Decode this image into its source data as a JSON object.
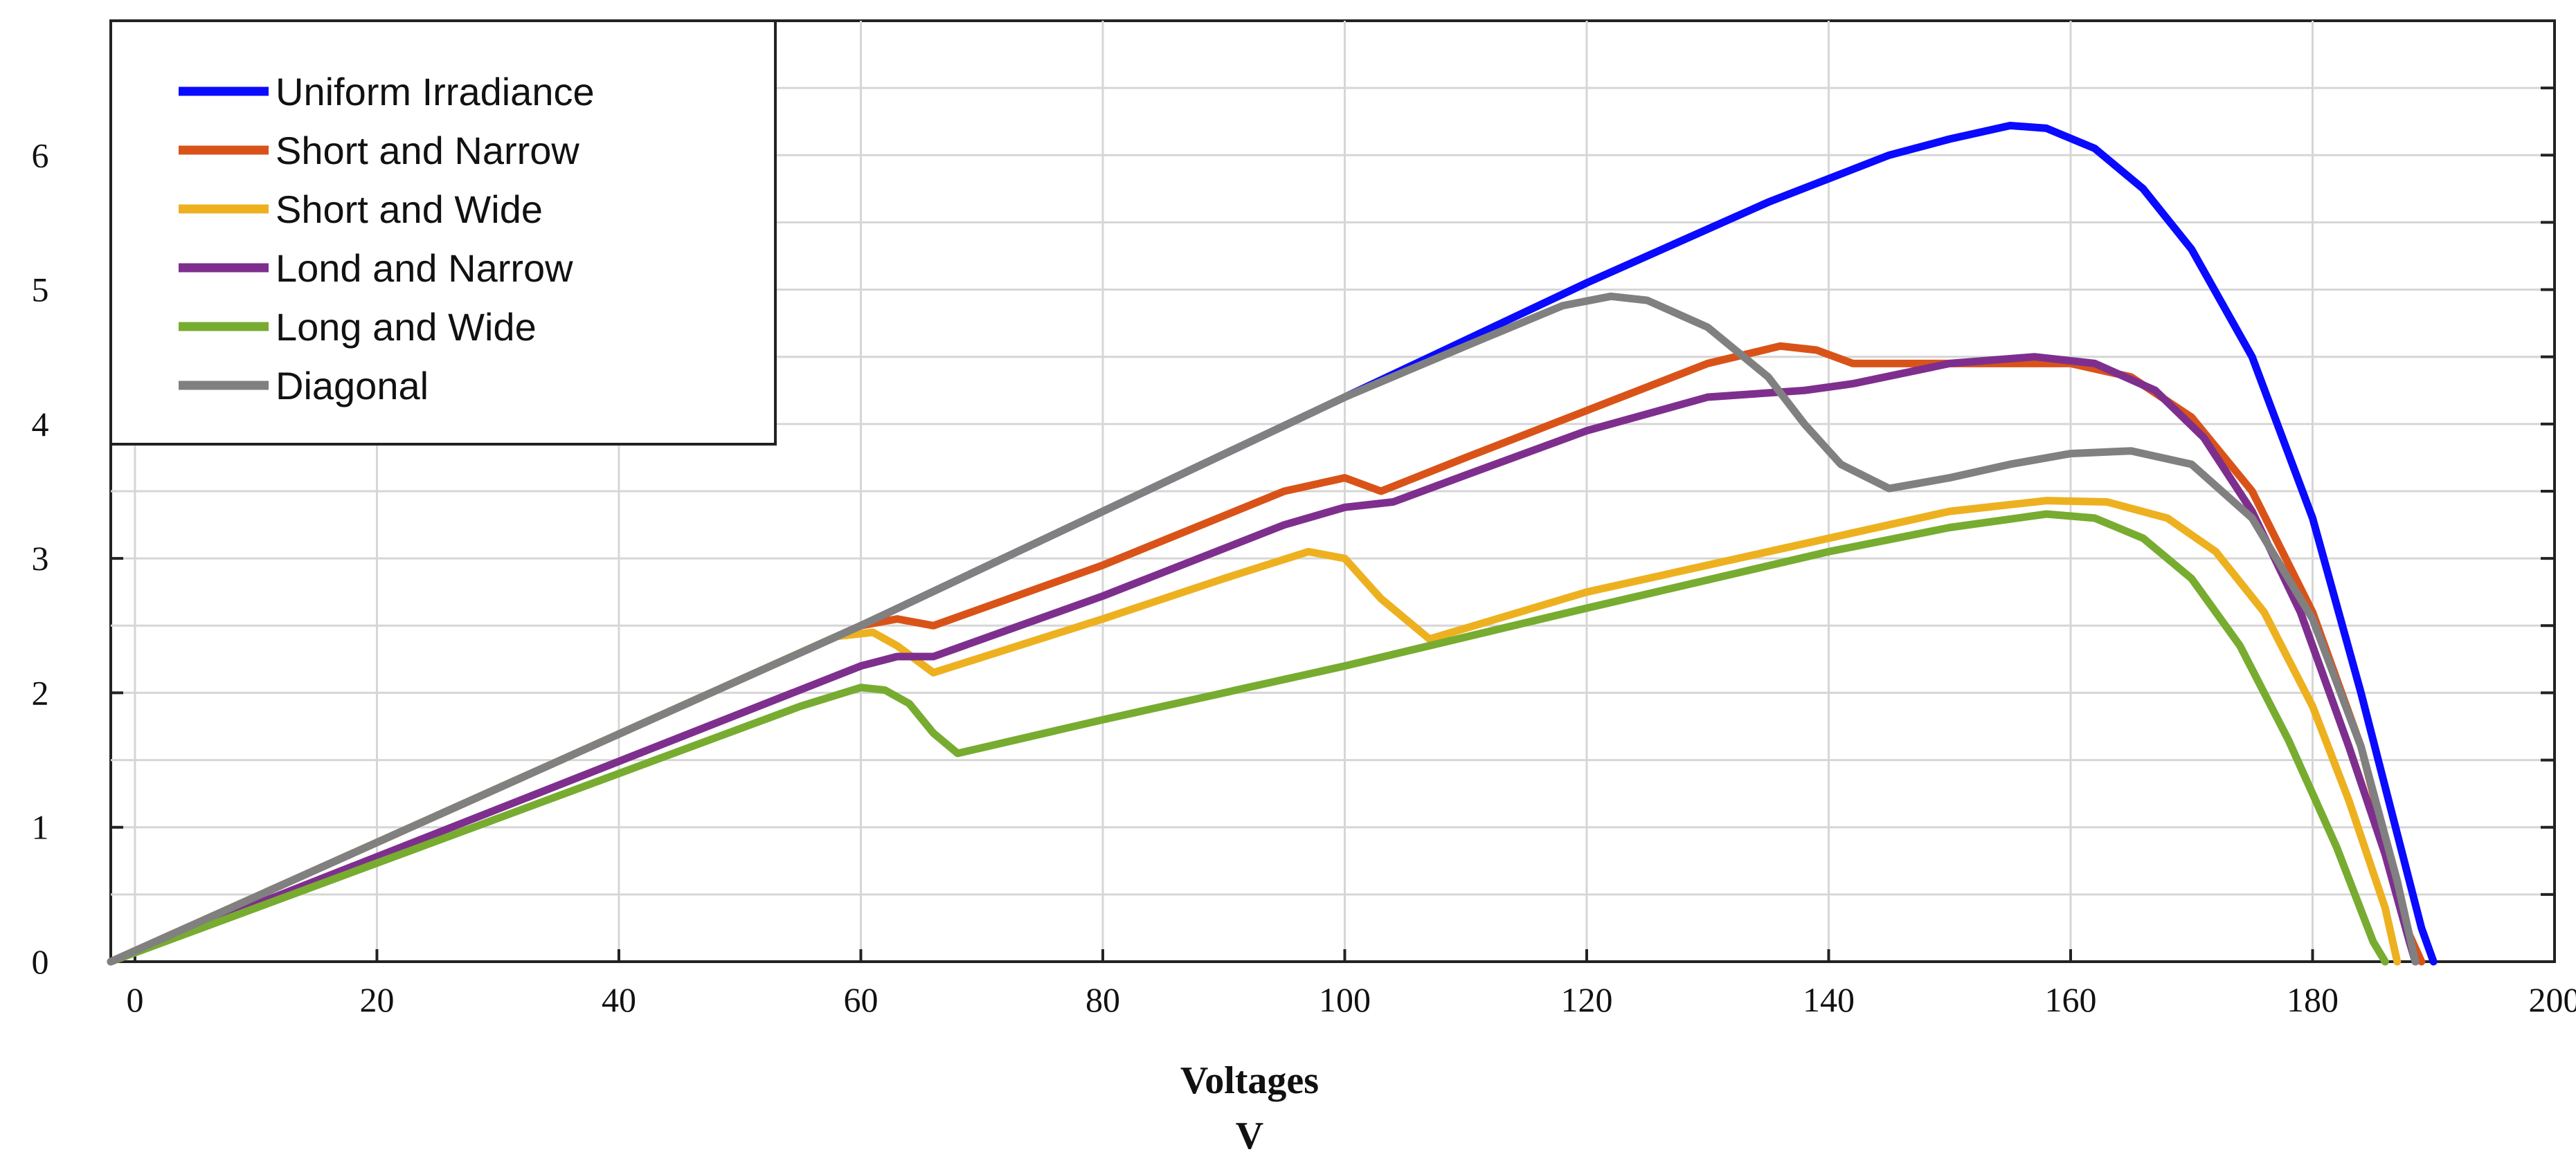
{
  "chart_data": {
    "type": "line",
    "title": "",
    "xlabel": "Voltages",
    "xunit": "V",
    "ylabel": "",
    "xlim": [
      -2,
      200
    ],
    "ylim": [
      0,
      7
    ],
    "grid": true,
    "legend_position": "top-left",
    "x_ticks": [
      0,
      20,
      40,
      60,
      80,
      100,
      120,
      140,
      160,
      180,
      200
    ],
    "y_tick_labels": [
      {
        "value": 0,
        "label": "0"
      },
      {
        "value": 1,
        "label": "1"
      },
      {
        "value": 2,
        "label": "2"
      },
      {
        "value": 3,
        "label": "3"
      },
      {
        "value": 4,
        "label": "4"
      },
      {
        "value": 5,
        "label": "5"
      },
      {
        "value": 6,
        "label": "6"
      }
    ],
    "series": [
      {
        "name": "Uniform Irradiance",
        "color": "#0a0aff",
        "points": [
          [
            -2,
            0
          ],
          [
            60,
            2.5
          ],
          [
            100,
            4.2
          ],
          [
            120,
            5.05
          ],
          [
            135,
            5.65
          ],
          [
            145,
            6.0
          ],
          [
            150,
            6.12
          ],
          [
            155,
            6.22
          ],
          [
            158,
            6.2
          ],
          [
            162,
            6.05
          ],
          [
            166,
            5.75
          ],
          [
            170,
            5.3
          ],
          [
            175,
            4.5
          ],
          [
            180,
            3.3
          ],
          [
            184,
            2.0
          ],
          [
            187,
            0.95
          ],
          [
            189,
            0.25
          ],
          [
            190,
            0
          ]
        ]
      },
      {
        "name": "Short and Narrow",
        "color": "#d95319",
        "points": [
          [
            -2,
            0
          ],
          [
            60,
            2.5
          ],
          [
            63,
            2.55
          ],
          [
            66,
            2.5
          ],
          [
            80,
            2.95
          ],
          [
            95,
            3.5
          ],
          [
            100,
            3.6
          ],
          [
            103,
            3.5
          ],
          [
            110,
            3.75
          ],
          [
            120,
            4.1
          ],
          [
            130,
            4.45
          ],
          [
            136,
            4.58
          ],
          [
            139,
            4.55
          ],
          [
            142,
            4.45
          ],
          [
            160,
            4.45
          ],
          [
            165,
            4.35
          ],
          [
            170,
            4.05
          ],
          [
            175,
            3.5
          ],
          [
            180,
            2.6
          ],
          [
            184,
            1.6
          ],
          [
            186,
            0.9
          ],
          [
            188,
            0.2
          ],
          [
            189,
            0
          ]
        ]
      },
      {
        "name": "Short and Wide",
        "color": "#edb120",
        "points": [
          [
            -2,
            0
          ],
          [
            58,
            2.42
          ],
          [
            61,
            2.45
          ],
          [
            63,
            2.35
          ],
          [
            66,
            2.15
          ],
          [
            80,
            2.55
          ],
          [
            90,
            2.85
          ],
          [
            97,
            3.05
          ],
          [
            100,
            3.0
          ],
          [
            103,
            2.7
          ],
          [
            107,
            2.4
          ],
          [
            120,
            2.75
          ],
          [
            140,
            3.15
          ],
          [
            150,
            3.35
          ],
          [
            158,
            3.43
          ],
          [
            163,
            3.42
          ],
          [
            168,
            3.3
          ],
          [
            172,
            3.05
          ],
          [
            176,
            2.6
          ],
          [
            180,
            1.9
          ],
          [
            183,
            1.2
          ],
          [
            186,
            0.4
          ],
          [
            187,
            0
          ]
        ]
      },
      {
        "name": "Lond and Narrow",
        "color": "#7e2f8e",
        "points": [
          [
            -2,
            0
          ],
          [
            60,
            2.2
          ],
          [
            63,
            2.27
          ],
          [
            66,
            2.27
          ],
          [
            80,
            2.72
          ],
          [
            95,
            3.25
          ],
          [
            100,
            3.38
          ],
          [
            104,
            3.42
          ],
          [
            110,
            3.62
          ],
          [
            120,
            3.95
          ],
          [
            130,
            4.2
          ],
          [
            138,
            4.25
          ],
          [
            142,
            4.3
          ],
          [
            150,
            4.45
          ],
          [
            157,
            4.5
          ],
          [
            162,
            4.45
          ],
          [
            167,
            4.25
          ],
          [
            171,
            3.9
          ],
          [
            175,
            3.35
          ],
          [
            179,
            2.6
          ],
          [
            183,
            1.6
          ],
          [
            186,
            0.8
          ],
          [
            188,
            0.15
          ],
          [
            188.5,
            0
          ]
        ]
      },
      {
        "name": "Long and Wide",
        "color": "#77ac30",
        "points": [
          [
            -2,
            0
          ],
          [
            55,
            1.9
          ],
          [
            60,
            2.04
          ],
          [
            62,
            2.02
          ],
          [
            64,
            1.92
          ],
          [
            66,
            1.7
          ],
          [
            68,
            1.55
          ],
          [
            80,
            1.8
          ],
          [
            100,
            2.2
          ],
          [
            120,
            2.63
          ],
          [
            140,
            3.05
          ],
          [
            150,
            3.23
          ],
          [
            158,
            3.33
          ],
          [
            162,
            3.3
          ],
          [
            166,
            3.15
          ],
          [
            170,
            2.85
          ],
          [
            174,
            2.35
          ],
          [
            178,
            1.65
          ],
          [
            182,
            0.85
          ],
          [
            185,
            0.15
          ],
          [
            186,
            0
          ]
        ]
      },
      {
        "name": "Diagonal",
        "color": "#808080",
        "points": [
          [
            -2,
            0
          ],
          [
            60,
            2.5
          ],
          [
            80,
            3.35
          ],
          [
            100,
            4.2
          ],
          [
            110,
            4.58
          ],
          [
            118,
            4.88
          ],
          [
            122,
            4.95
          ],
          [
            125,
            4.92
          ],
          [
            130,
            4.72
          ],
          [
            135,
            4.35
          ],
          [
            138,
            4.0
          ],
          [
            141,
            3.7
          ],
          [
            145,
            3.52
          ],
          [
            150,
            3.6
          ],
          [
            155,
            3.7
          ],
          [
            160,
            3.78
          ],
          [
            165,
            3.8
          ],
          [
            170,
            3.7
          ],
          [
            175,
            3.3
          ],
          [
            180,
            2.55
          ],
          [
            184,
            1.6
          ],
          [
            187,
            0.6
          ],
          [
            188.5,
            0
          ]
        ]
      }
    ]
  }
}
